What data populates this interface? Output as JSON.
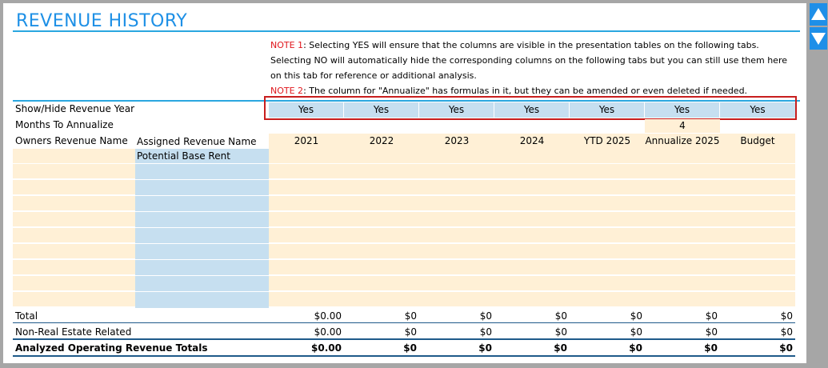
{
  "title": "REVENUE HISTORY",
  "notes": {
    "note1_tag": "NOTE 1",
    "note1_text": ": Selecting YES will ensure that the columns are visible in the presentation tables on the following tabs. Selecting NO will automatically hide the corresponding columns on the following tabs but you can still use them here on this tab for reference or additional analysis.",
    "note2_tag": "NOTE 2",
    "note2_text": ": The column for \"Annualize\" has formulas in it, but they can be amended or even deleted if needed."
  },
  "labels": {
    "show_hide": "Show/Hide Revenue Year",
    "months_to_annualize": "Months To Annualize",
    "owners_revenue_name": "Owners Revenue Name",
    "assigned_revenue_name": "Assigned Revenue Name",
    "first_revenue": "Potential Base Rent"
  },
  "show_hide_values": [
    "Yes",
    "Yes",
    "Yes",
    "Yes",
    "Yes",
    "Yes",
    "Yes"
  ],
  "months_to_annualize_value": "4",
  "columns": [
    "2021",
    "2022",
    "2023",
    "2024",
    "YTD 2025",
    "Annualize 2025",
    "Budget"
  ],
  "totals": {
    "total_label": "Total",
    "total_values": [
      "$0.00",
      "$0",
      "$0",
      "$0",
      "$0",
      "$0",
      "$0"
    ],
    "non_re_label": "Non-Real Estate Related",
    "non_re_values": [
      "$0.00",
      "$0",
      "$0",
      "$0",
      "$0",
      "$0",
      "$0"
    ],
    "analyzed_label": "Analyzed Operating Revenue Totals",
    "analyzed_values": [
      "$0.00",
      "$0",
      "$0",
      "$0",
      "$0",
      "$0",
      "$0"
    ]
  },
  "colors": {
    "title": "#1e90e6",
    "note_tag": "#e0161c",
    "input_peach": "#fff0d6",
    "input_blue": "#c6dff0",
    "highlight_box": "#c81e1e"
  }
}
